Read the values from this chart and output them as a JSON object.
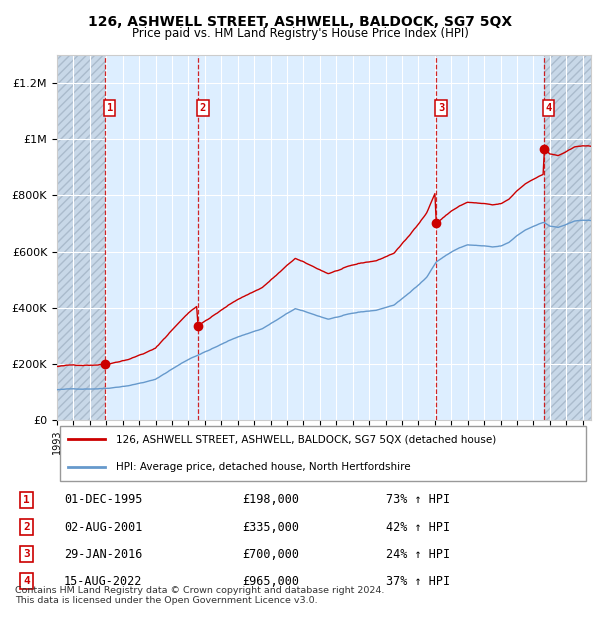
{
  "title": "126, ASHWELL STREET, ASHWELL, BALDOCK, SG7 5QX",
  "subtitle": "Price paid vs. HM Land Registry's House Price Index (HPI)",
  "property_label": "126, ASHWELL STREET, ASHWELL, BALDOCK, SG7 5QX (detached house)",
  "hpi_label": "HPI: Average price, detached house, North Hertfordshire",
  "footer1": "Contains HM Land Registry data © Crown copyright and database right 2024.",
  "footer2": "This data is licensed under the Open Government Licence v3.0.",
  "property_color": "#cc0000",
  "hpi_color": "#6699cc",
  "background_plot": "#ddeeff",
  "background_hatch": "#c8d8e8",
  "ylim": [
    0,
    1300000
  ],
  "yticks": [
    0,
    200000,
    400000,
    600000,
    800000,
    1000000,
    1200000
  ],
  "sale_dates_num": [
    1995.917,
    2001.583,
    2016.083,
    2022.625
  ],
  "sale_prices": [
    198000,
    335000,
    700000,
    965000
  ],
  "sale_labels": [
    "1",
    "2",
    "3",
    "4"
  ],
  "sale_date_strings": [
    "01-DEC-1995",
    "02-AUG-2001",
    "29-JAN-2016",
    "15-AUG-2022"
  ],
  "sale_price_strings": [
    "£198,000",
    "£335,000",
    "£700,000",
    "£965,000"
  ],
  "sale_hpi_strings": [
    "73% ↑ HPI",
    "42% ↑ HPI",
    "24% ↑ HPI",
    "37% ↑ HPI"
  ],
  "xmin": 1993.0,
  "xmax": 2025.5
}
